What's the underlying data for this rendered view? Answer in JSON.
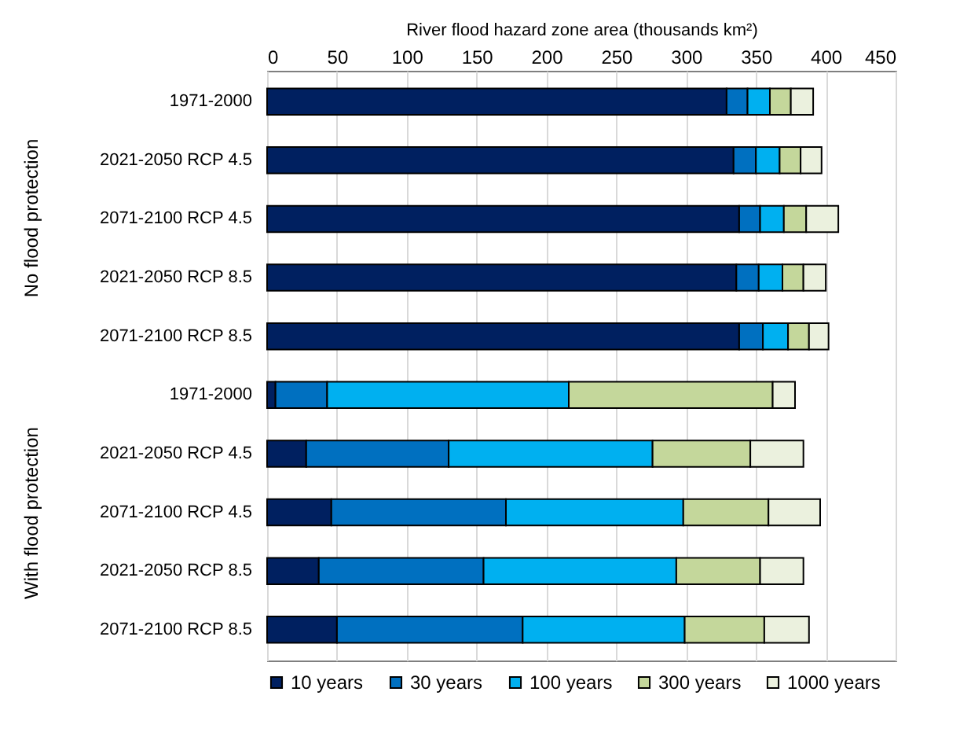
{
  "chart_data": {
    "type": "bar",
    "orientation": "horizontal",
    "stacked": true,
    "xlabel": "River flood hazard zone area (thousands km²)",
    "categories": [
      "1971-2000",
      "2021-2050 RCP 4.5",
      "2071-2100 RCP 4.5",
      "2021-2050 RCP 8.5",
      "2071-2100 RCP 8.5",
      "1971-2000",
      "2021-2050 RCP 4.5",
      "2071-2100 RCP 4.5",
      "2021-2050 RCP 8.5",
      "2071-2100 RCP 8.5"
    ],
    "series": [
      {
        "name": "10 years",
        "color": "#002060",
        "values": [
          329,
          334,
          338,
          336,
          338,
          6,
          28,
          46,
          37,
          50
        ]
      },
      {
        "name": "30 years",
        "color": "#0070c0",
        "values": [
          15,
          16,
          15,
          16,
          17,
          37,
          102,
          125,
          118,
          133
        ]
      },
      {
        "name": "100 years",
        "color": "#00b0f0",
        "values": [
          16,
          17,
          17,
          17,
          18,
          173,
          146,
          127,
          138,
          116
        ]
      },
      {
        "name": "300 years",
        "color": "#c4d79b",
        "values": [
          15,
          15,
          16,
          15,
          15,
          146,
          70,
          61,
          60,
          57
        ]
      },
      {
        "name": "1000 years",
        "color": "#ebf1de",
        "values": [
          16,
          15,
          23,
          16,
          14,
          16,
          38,
          37,
          31,
          32
        ]
      }
    ],
    "xlim": [
      0,
      450
    ],
    "xticks": [
      0,
      50,
      100,
      150,
      200,
      250,
      300,
      350,
      400,
      450
    ],
    "annotations": [
      "No flood protection",
      "With flood protection"
    ],
    "grid": "x",
    "legend": "bottom"
  }
}
